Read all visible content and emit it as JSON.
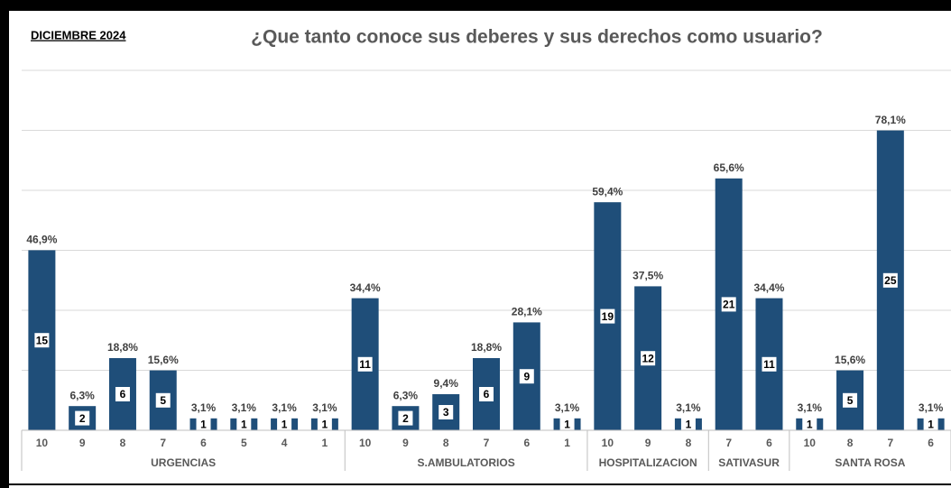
{
  "chart_data": {
    "type": "bar",
    "title": "¿Que tanto conoce sus deberes y sus derechos como usuario?",
    "subtitle": "DICIEMBRE 2024",
    "color": "#1f4e79",
    "grid": true,
    "ylim": [
      0,
      93.75
    ],
    "yticks": [
      0,
      15.625,
      31.25,
      46.875,
      62.5,
      78.125,
      93.75
    ],
    "groups": [
      {
        "name": "URGENCIAS",
        "categories": [
          "10",
          "9",
          "8",
          "7",
          "6",
          "5",
          "4",
          "1"
        ],
        "values": [
          46.9,
          6.3,
          18.8,
          15.6,
          3.1,
          3.1,
          3.1,
          3.1
        ],
        "value_labels": [
          "46,9%",
          "6,3%",
          "18,8%",
          "15,6%",
          "3,1%",
          "3,1%",
          "3,1%",
          "3,1%"
        ],
        "counts": [
          15,
          2,
          6,
          5,
          1,
          1,
          1,
          1
        ]
      },
      {
        "name": "S.AMBULATORIOS",
        "categories": [
          "10",
          "9",
          "8",
          "7",
          "6",
          "1"
        ],
        "values": [
          34.4,
          6.3,
          9.4,
          18.8,
          28.1,
          3.1
        ],
        "value_labels": [
          "34,4%",
          "6,3%",
          "9,4%",
          "18,8%",
          "28,1%",
          "3,1%"
        ],
        "counts": [
          11,
          2,
          3,
          6,
          9,
          1
        ]
      },
      {
        "name": "HOSPITALIZACION",
        "categories": [
          "10",
          "9",
          "8"
        ],
        "values": [
          59.4,
          37.5,
          3.1
        ],
        "value_labels": [
          "59,4%",
          "37,5%",
          "3,1%"
        ],
        "counts": [
          19,
          12,
          1
        ]
      },
      {
        "name": "SATIVASUR",
        "categories": [
          "7",
          "6"
        ],
        "values": [
          65.6,
          34.4
        ],
        "value_labels": [
          "65,6%",
          "34,4%"
        ],
        "counts": [
          21,
          11
        ]
      },
      {
        "name": "SANTA ROSA",
        "categories": [
          "10",
          "8",
          "7",
          "6"
        ],
        "values": [
          3.1,
          15.6,
          78.1,
          3.1
        ],
        "value_labels": [
          "3,1%",
          "15,6%",
          "78,1%",
          "3,1%"
        ],
        "counts": [
          1,
          5,
          25,
          1
        ]
      }
    ]
  }
}
